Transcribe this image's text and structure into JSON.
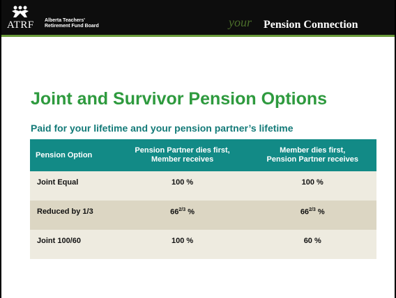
{
  "header": {
    "logo": "ATRF",
    "organization": "Alberta Teachers'\nRetirement Fund Board",
    "brand_script": "your",
    "brand": "Pension Connection"
  },
  "title": "Joint and Survivor Pension Options",
  "subtitle": "Paid for your lifetime and your pension partner’s lifetime",
  "table": {
    "columns": [
      "Pension Option",
      "Pension Partner dies first,\nMember receives",
      "Member dies first,\nPension Partner receives"
    ],
    "rows": [
      [
        "Joint Equal",
        "100 %",
        "100 %"
      ],
      [
        "Reduced by 1/3",
        {
          "main": "66",
          "sup": "2/3",
          "rest": " %"
        },
        {
          "main": "66",
          "sup": "2/3",
          "rest": " %"
        }
      ],
      [
        "Joint 100/60",
        "100 %",
        "60 %"
      ]
    ]
  }
}
